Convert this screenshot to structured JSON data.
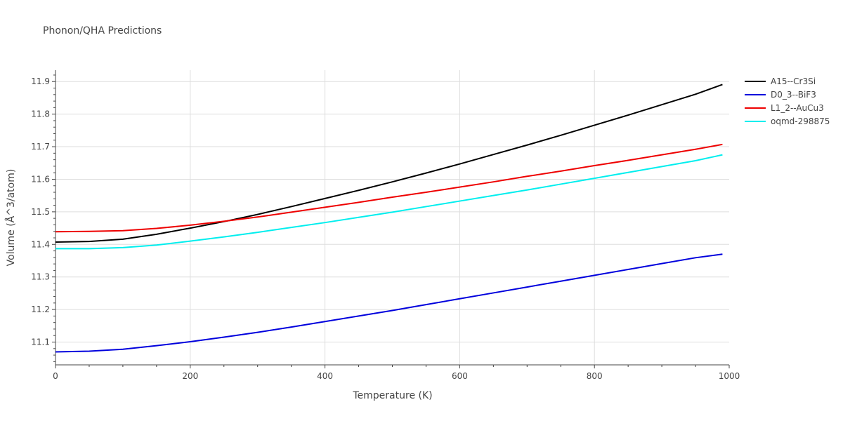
{
  "chart_data": {
    "type": "line",
    "title": "Phonon/QHA Predictions",
    "xlabel": "Temperature (K)",
    "ylabel": "Volume (Å^3/atom)",
    "xlim": [
      0,
      1000
    ],
    "ylim": [
      11.03,
      11.935
    ],
    "x_ticks": [
      0,
      200,
      400,
      600,
      800,
      1000
    ],
    "x_tick_labels": [
      "0",
      "200",
      "400",
      "600",
      "800",
      "1000"
    ],
    "y_ticks": [
      11.1,
      11.2,
      11.3,
      11.4,
      11.5,
      11.6,
      11.7,
      11.8,
      11.9
    ],
    "y_tick_labels": [
      "11.1",
      "11.2",
      "11.3",
      "11.4",
      "11.5",
      "11.6",
      "11.7",
      "11.8",
      "11.9"
    ],
    "grid": true,
    "legend_position": "top-right",
    "x": [
      0,
      50,
      100,
      150,
      200,
      250,
      300,
      350,
      400,
      450,
      500,
      550,
      600,
      650,
      700,
      750,
      800,
      850,
      900,
      950,
      990
    ],
    "series": [
      {
        "name": "A15--Cr3Si",
        "color": "#000000",
        "values": [
          11.407,
          11.409,
          11.416,
          11.431,
          11.45,
          11.47,
          11.492,
          11.516,
          11.541,
          11.566,
          11.592,
          11.619,
          11.647,
          11.676,
          11.705,
          11.735,
          11.766,
          11.797,
          11.829,
          11.861,
          11.891
        ]
      },
      {
        "name": "D0_3--BiF3",
        "color": "#0000dd",
        "values": [
          11.07,
          11.072,
          11.078,
          11.089,
          11.101,
          11.115,
          11.13,
          11.146,
          11.163,
          11.18,
          11.197,
          11.215,
          11.233,
          11.251,
          11.269,
          11.287,
          11.305,
          11.323,
          11.341,
          11.359,
          11.37
        ]
      },
      {
        "name": "L1_2--AuCu3",
        "color": "#ee0000",
        "values": [
          11.439,
          11.44,
          11.442,
          11.449,
          11.459,
          11.471,
          11.484,
          11.499,
          11.514,
          11.529,
          11.545,
          11.56,
          11.576,
          11.592,
          11.609,
          11.625,
          11.642,
          11.658,
          11.675,
          11.692,
          11.707
        ]
      },
      {
        "name": "oqmd-298875",
        "color": "#00eeee",
        "values": [
          11.387,
          11.387,
          11.39,
          11.398,
          11.41,
          11.423,
          11.437,
          11.452,
          11.467,
          11.483,
          11.499,
          11.516,
          11.533,
          11.55,
          11.567,
          11.585,
          11.603,
          11.621,
          11.639,
          11.657,
          11.675
        ]
      }
    ]
  }
}
